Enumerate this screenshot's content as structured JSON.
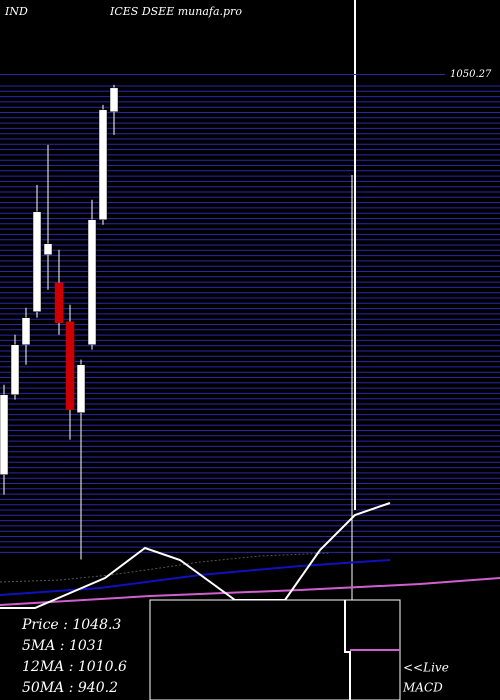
{
  "chart_data": {
    "type": "candlestick",
    "title_left": "IND",
    "title": "ICES DSEE munafa.pro",
    "x": [
      1,
      2,
      3,
      4,
      5,
      6,
      7,
      8,
      9,
      10,
      11
    ],
    "open": [
      710,
      778,
      820.5,
      848.6,
      897,
      873.2,
      840.1,
      762.7,
      820.5,
      926.8,
      1018.6
    ],
    "high": [
      786.5,
      829,
      851.9,
      956.5,
      990.5,
      901.3,
      854.5,
      807.8,
      943.8,
      1024.5,
      1041.5
    ],
    "low": [
      693,
      773.8,
      803.5,
      843.5,
      867.3,
      829,
      739.8,
      637.8,
      816.3,
      922.5,
      999
    ],
    "close": [
      778,
      820.5,
      843.5,
      933.6,
      906.4,
      839.2,
      765.3,
      803.5,
      926.8,
      1020.3,
      1039
    ],
    "up_color": "#ffffff",
    "down_color": "#cc0000",
    "ylim": [
      634,
      1055
    ],
    "yticks": [
      1050.27
    ],
    "info": [
      {
        "label": "Price",
        "value": 1048.3
      },
      {
        "label": "5MA",
        "value": 1031
      },
      {
        "label": "12MA",
        "value": 1010.6
      },
      {
        "label": "50MA",
        "value": 940.2
      }
    ],
    "live_label": "<<Live",
    "panel_label": "MACD"
  }
}
